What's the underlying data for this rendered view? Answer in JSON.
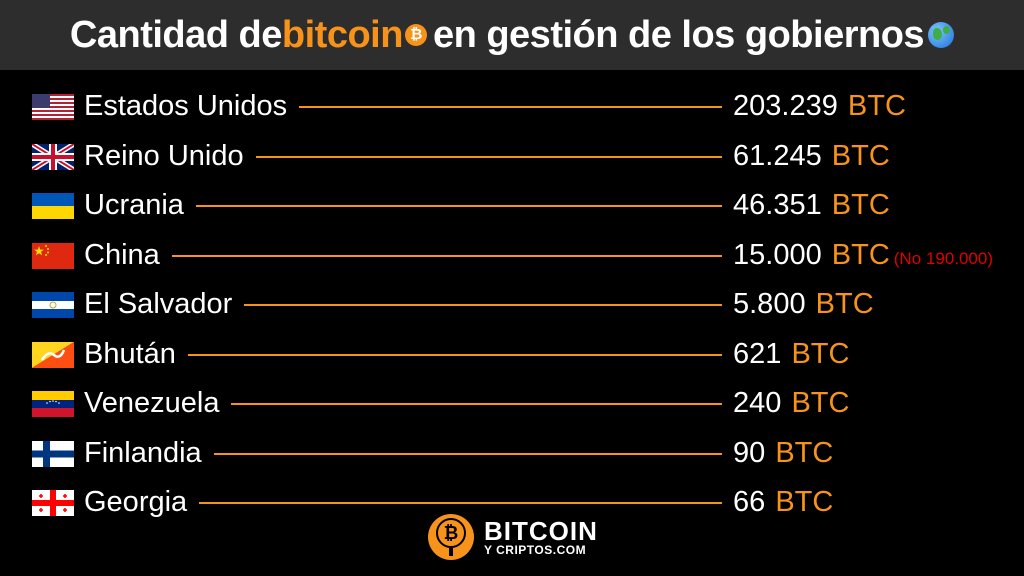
{
  "header": {
    "title_part1": "Cantidad de ",
    "title_highlight": "bitcoin",
    "coin_symbol": "₿",
    "title_part2": "en gestión de los gobiernos",
    "globe_icon": "globe-icon",
    "accent_color": "#f7931a"
  },
  "chart_data": {
    "type": "table",
    "unit": "BTC",
    "rows": [
      {
        "country": "Estados Unidos",
        "flag": "us-flag-icon",
        "value": 203239,
        "display": "203.239"
      },
      {
        "country": "Reino Unido",
        "flag": "uk-flag-icon",
        "value": 61245,
        "display": "61.245"
      },
      {
        "country": "Ucrania",
        "flag": "ukraine-flag-icon",
        "value": 46351,
        "display": "46.351"
      },
      {
        "country": "China",
        "flag": "china-flag-icon",
        "value": 15000,
        "display": "15.000",
        "note": "(No 190.000)"
      },
      {
        "country": "El Salvador",
        "flag": "el-salvador-flag-icon",
        "value": 5800,
        "display": "5.800"
      },
      {
        "country": "Bhután",
        "flag": "bhutan-flag-icon",
        "value": 621,
        "display": "621"
      },
      {
        "country": "Venezuela",
        "flag": "venezuela-flag-icon",
        "value": 240,
        "display": "240"
      },
      {
        "country": "Finlandia",
        "flag": "finland-flag-icon",
        "value": 90,
        "display": "90"
      },
      {
        "country": "Georgia",
        "flag": "georgia-flag-icon",
        "value": 66,
        "display": "66"
      }
    ]
  },
  "footer": {
    "brand_line1": "BITCOIN",
    "brand_line2": "Y CRIPTOS.COM",
    "logo_icon": "microphone-bitcoin-icon"
  }
}
